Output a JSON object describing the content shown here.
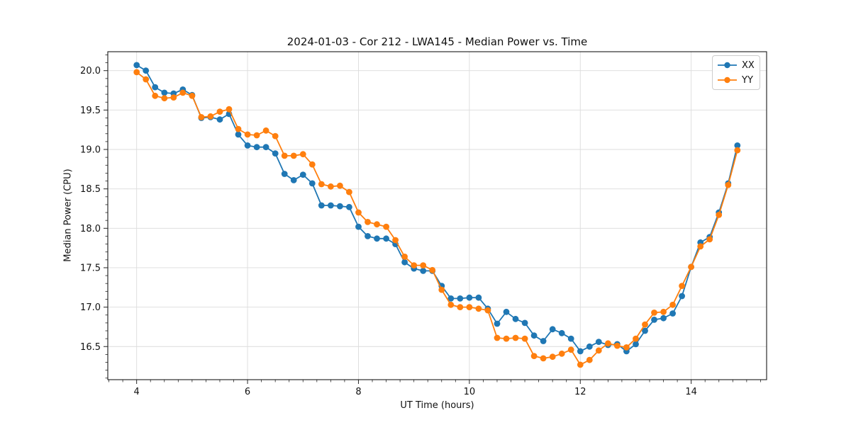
{
  "figure": {
    "title": "2024-01-03 - Cor 212 - LWA145 - Median Power vs. Time"
  },
  "chart_data": {
    "type": "line",
    "title": "2024-01-03 - Cor 212 - LWA145 - Median Power vs. Time",
    "xlabel": "UT Time (hours)",
    "ylabel": "Median Power (CPU)",
    "xlim": [
      3.48,
      15.36
    ],
    "ylim": [
      16.08,
      20.24
    ],
    "xticks": [
      4,
      6,
      8,
      10,
      12,
      14
    ],
    "yticks": [
      16.5,
      17.0,
      17.5,
      18.0,
      18.5,
      19.0,
      19.5,
      20.0
    ],
    "x_minor_step": 0.25,
    "y_minor_step": 0.1,
    "grid": true,
    "grid_color": "#dcdcdc",
    "legend_position": "upper right",
    "x": [
      4,
      4.167,
      4.333,
      4.5,
      4.667,
      4.833,
      5,
      5.167,
      5.333,
      5.5,
      5.667,
      5.833,
      6,
      6.167,
      6.333,
      6.5,
      6.667,
      6.833,
      7,
      7.167,
      7.333,
      7.5,
      7.667,
      7.833,
      8,
      8.167,
      8.333,
      8.5,
      8.667,
      8.833,
      9,
      9.167,
      9.333,
      9.5,
      9.667,
      9.833,
      10,
      10.167,
      10.333,
      10.5,
      10.667,
      10.833,
      11,
      11.167,
      11.333,
      11.5,
      11.667,
      11.833,
      12,
      12.167,
      12.333,
      12.5,
      12.667,
      12.833,
      13,
      13.167,
      13.333,
      13.5,
      13.667,
      13.833,
      14,
      14.167,
      14.333,
      14.5,
      14.667,
      14.833
    ],
    "series": [
      {
        "name": "XX",
        "color": "#1f77b4",
        "values": [
          20.07,
          20.0,
          19.79,
          19.72,
          19.71,
          19.76,
          19.69,
          19.4,
          19.41,
          19.38,
          19.45,
          19.19,
          19.05,
          19.03,
          19.03,
          18.95,
          18.69,
          18.61,
          18.68,
          18.57,
          18.29,
          18.29,
          18.28,
          18.27,
          18.02,
          17.9,
          17.87,
          17.87,
          17.8,
          17.57,
          17.49,
          17.46,
          17.46,
          17.27,
          17.11,
          17.11,
          17.12,
          17.12,
          16.98,
          16.79,
          16.94,
          16.85,
          16.8,
          16.64,
          16.57,
          16.72,
          16.67,
          16.6,
          16.44,
          16.5,
          16.56,
          16.52,
          16.53,
          16.44,
          16.53,
          16.7,
          16.84,
          16.86,
          16.92,
          17.14,
          17.51,
          17.82,
          17.89,
          18.2,
          18.57,
          19.05
        ]
      },
      {
        "name": "YY",
        "color": "#ff7f0e",
        "values": [
          19.98,
          19.89,
          19.68,
          19.65,
          19.66,
          19.72,
          19.68,
          19.41,
          19.42,
          19.48,
          19.51,
          19.26,
          19.19,
          19.18,
          19.24,
          19.17,
          18.92,
          18.92,
          18.94,
          18.81,
          18.56,
          18.53,
          18.54,
          18.46,
          18.2,
          18.08,
          18.05,
          18.02,
          17.85,
          17.64,
          17.53,
          17.53,
          17.47,
          17.22,
          17.03,
          17.0,
          17.0,
          16.98,
          16.96,
          16.61,
          16.6,
          16.61,
          16.6,
          16.38,
          16.35,
          16.37,
          16.41,
          16.46,
          16.27,
          16.33,
          16.45,
          16.54,
          16.51,
          16.49,
          16.6,
          16.78,
          16.93,
          16.94,
          17.03,
          17.27,
          17.51,
          17.77,
          17.86,
          18.17,
          18.55,
          18.99
        ]
      }
    ]
  }
}
